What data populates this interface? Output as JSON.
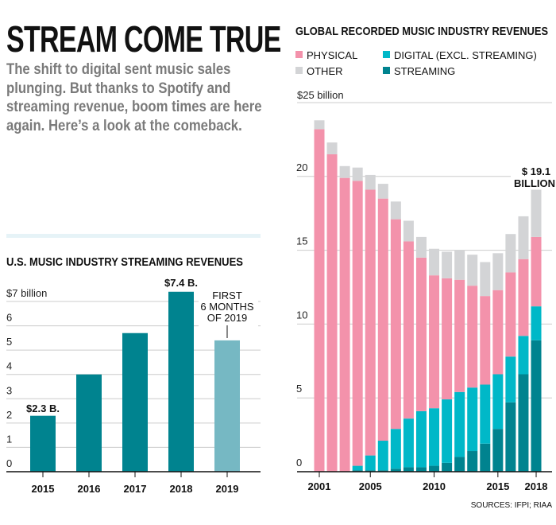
{
  "headline": "STREAM COME TRUE",
  "dek": "The shift to digital sent music sales plunging. But thanks to Spotify and streaming revenue, boom times are here again. Here’s a look at the comeback.",
  "chart_data": [
    {
      "type": "bar",
      "title": "U.S. MUSIC INDUSTRY STREAMING REVENUES",
      "ylabel": "$7 billion",
      "categories": [
        "2015",
        "2016",
        "2017",
        "2018",
        "2019"
      ],
      "values": [
        2.3,
        4.0,
        5.7,
        7.4,
        5.4
      ],
      "ylim": [
        0,
        7
      ],
      "yticks": [
        "0",
        "1",
        "2",
        "3",
        "4",
        "5",
        "6"
      ],
      "grid": true,
      "colors": {
        "full_year": "#00838f",
        "partial_year": "#76b8c3"
      },
      "annotations": {
        "first": "$2.3 B.",
        "max": "$7.4 B.",
        "partial": [
          "FIRST",
          "6 MONTHS",
          "OF 2019"
        ]
      }
    },
    {
      "type": "bar",
      "stacked": true,
      "title": "GLOBAL RECORDED MUSIC INDUSTRY REVENUES",
      "ylabel": "$25 billion",
      "ylim": [
        0,
        25
      ],
      "yticks": [
        "0",
        "5",
        "10",
        "15",
        "20"
      ],
      "grid": true,
      "categories": [
        "2001",
        "2002",
        "2003",
        "2004",
        "2005",
        "2006",
        "2007",
        "2008",
        "2009",
        "2010",
        "2011",
        "2012",
        "2013",
        "2014",
        "2015",
        "2016",
        "2017",
        "2018"
      ],
      "xtick_labels": [
        "2001",
        "2005",
        "2010",
        "2015",
        "2018"
      ],
      "legend_position": "top",
      "series": [
        {
          "name": "STREAMING",
          "color": "#00838f",
          "values": [
            0,
            0,
            0,
            0.1,
            0.1,
            0.1,
            0.2,
            0.3,
            0.3,
            0.4,
            0.6,
            1.0,
            1.4,
            1.9,
            2.9,
            4.7,
            6.6,
            8.9
          ]
        },
        {
          "name": "DIGITAL (EXCL. STREAMING)",
          "color": "#00b8c8",
          "values": [
            0,
            0,
            0,
            0.3,
            1.0,
            2.0,
            2.7,
            3.3,
            3.8,
            3.9,
            4.3,
            4.4,
            4.3,
            4.0,
            3.7,
            3.1,
            2.6,
            2.3
          ]
        },
        {
          "name": "PHYSICAL",
          "color": "#f392ab",
          "values": [
            23.2,
            21.5,
            19.9,
            19.3,
            18.0,
            16.4,
            14.2,
            12.0,
            10.4,
            9.0,
            8.2,
            7.6,
            6.9,
            6.0,
            5.7,
            5.7,
            5.2,
            4.7
          ]
        },
        {
          "name": "OTHER",
          "color": "#d3d4d6",
          "values": [
            0.6,
            0.8,
            0.8,
            0.9,
            1.0,
            1.0,
            1.2,
            1.4,
            1.4,
            1.8,
            1.8,
            2.0,
            2.1,
            2.3,
            2.5,
            2.6,
            2.9,
            3.2
          ]
        }
      ],
      "legend_order": [
        "PHYSICAL",
        "DIGITAL (EXCL. STREAMING)",
        "OTHER",
        "STREAMING"
      ],
      "annotation": [
        "$ 19.1",
        "BILLION"
      ],
      "source": "SOURCES: IFPI; RIAA"
    }
  ]
}
